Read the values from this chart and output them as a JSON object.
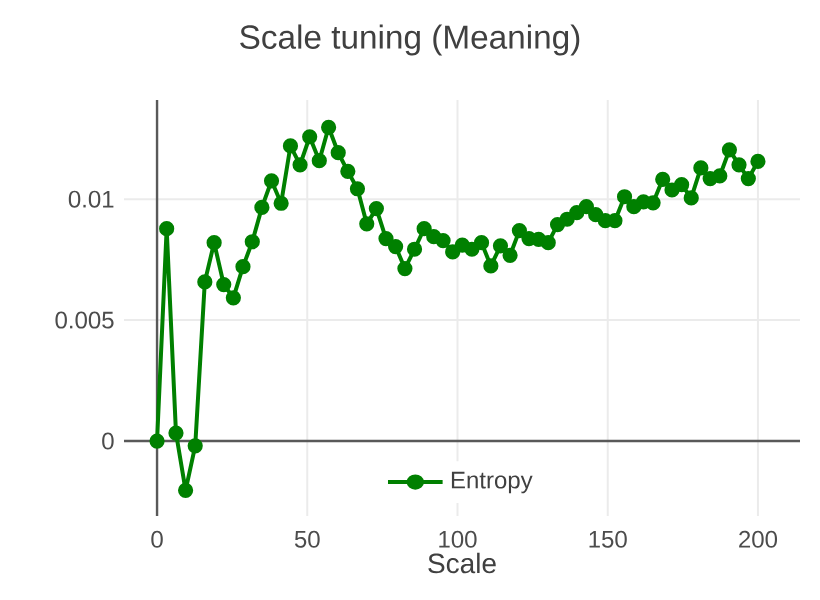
{
  "chart_data": {
    "type": "line",
    "title": "Scale tuning (Meaning)",
    "xlabel": "Scale",
    "xlim": [
      -11,
      214
    ],
    "ylim": [
      -0.0031,
      0.0141
    ],
    "xticks": [
      0,
      50,
      100,
      150,
      200
    ],
    "yticks": [
      0,
      0.005,
      0.01
    ],
    "grid": true,
    "legend": "bottom",
    "marker": "circle",
    "line_style": "solid",
    "x": [
      0,
      3.2,
      6.3,
      9.5,
      12.7,
      15.9,
      19,
      22.2,
      25.4,
      28.6,
      31.7,
      34.9,
      38.1,
      41.3,
      44.4,
      47.6,
      50.8,
      54,
      57.1,
      60.3,
      63.5,
      66.7,
      69.8,
      73,
      76.2,
      79.4,
      82.5,
      85.7,
      88.9,
      92.1,
      95.2,
      98.4,
      101.6,
      104.8,
      108,
      111.1,
      114.3,
      117.5,
      120.6,
      123.8,
      127,
      130.2,
      133.3,
      136.5,
      139.7,
      142.9,
      146,
      149.2,
      152.4,
      155.6,
      158.7,
      161.9,
      165.1,
      168.3,
      171.4,
      174.6,
      177.8,
      181,
      184.1,
      187.3,
      190.5,
      193.7,
      196.8,
      200
    ],
    "series": [
      {
        "name": "Entropy",
        "color": "#008000",
        "values": [
          0,
          0.00878,
          0.00033,
          -0.00204,
          -0.0002,
          0.00658,
          0.0082,
          0.00647,
          0.00592,
          0.00721,
          0.00824,
          0.00966,
          0.01076,
          0.00983,
          0.0122,
          0.01142,
          0.01258,
          0.01159,
          0.01297,
          0.01192,
          0.01115,
          0.01043,
          0.00898,
          0.00961,
          0.00837,
          0.00804,
          0.00713,
          0.00793,
          0.00878,
          0.00845,
          0.00829,
          0.00782,
          0.0081,
          0.00793,
          0.0082,
          0.00724,
          0.00807,
          0.00768,
          0.0087,
          0.00837,
          0.00834,
          0.0082,
          0.00895,
          0.00917,
          0.00944,
          0.00969,
          0.00936,
          0.00911,
          0.00911,
          0.0101,
          0.00969,
          0.00989,
          0.00985,
          0.01082,
          0.01038,
          0.0106,
          0.01005,
          0.01129,
          0.01085,
          0.01096,
          0.01204,
          0.01142,
          0.01085,
          0.01156
        ]
      }
    ]
  }
}
